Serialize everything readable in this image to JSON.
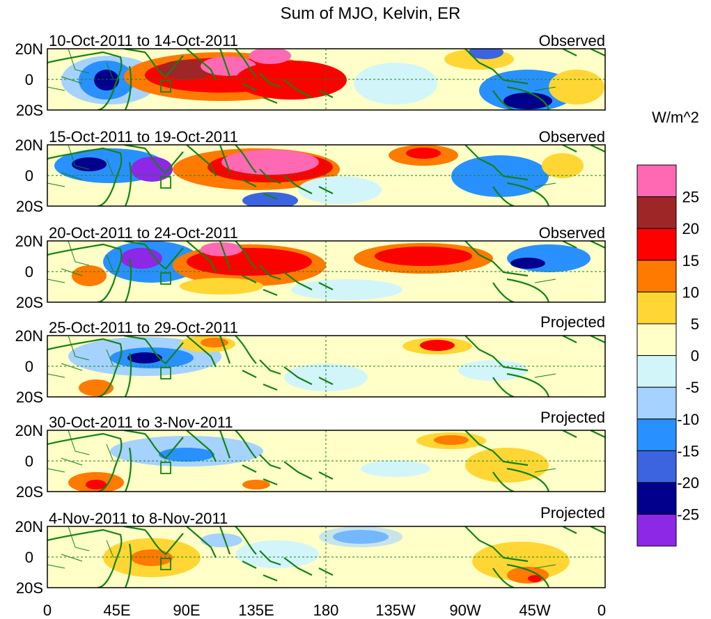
{
  "title": "Sum of MJO, Kelvin, ER",
  "units": "W/m^2",
  "lat_ticks": [
    "20N",
    "0",
    "20S"
  ],
  "lon_ticks": [
    "0",
    "45E",
    "90E",
    "135E",
    "180",
    "135W",
    "90W",
    "45W",
    "0"
  ],
  "panels": [
    {
      "date": "10-Oct-2011 to 14-Oct-2011",
      "kind": "Observed"
    },
    {
      "date": "15-Oct-2011 to 19-Oct-2011",
      "kind": "Observed"
    },
    {
      "date": "20-Oct-2011 to 24-Oct-2011",
      "kind": "Observed"
    },
    {
      "date": "25-Oct-2011 to 29-Oct-2011",
      "kind": "Projected"
    },
    {
      "date": "30-Oct-2011 to 3-Nov-2011",
      "kind": "Projected"
    },
    {
      "date": "4-Nov-2011 to 8-Nov-2011",
      "kind": "Projected"
    }
  ],
  "colorbar": {
    "labels": [
      "25",
      "20",
      "15",
      "10",
      "5",
      "0",
      "-5",
      "-10",
      "-15",
      "-20",
      "-25"
    ],
    "colors": [
      "#ff69b4",
      "#9e2626",
      "#ff0000",
      "#ff7a00",
      "#ffd633",
      "#ffffc8",
      "#d2f5fa",
      "#a5d2ff",
      "#2891ff",
      "#3c64e1",
      "#00008c",
      "#8c28e6"
    ]
  },
  "palette": {
    "coast": "#138213",
    "ref_line": "#138213"
  }
}
